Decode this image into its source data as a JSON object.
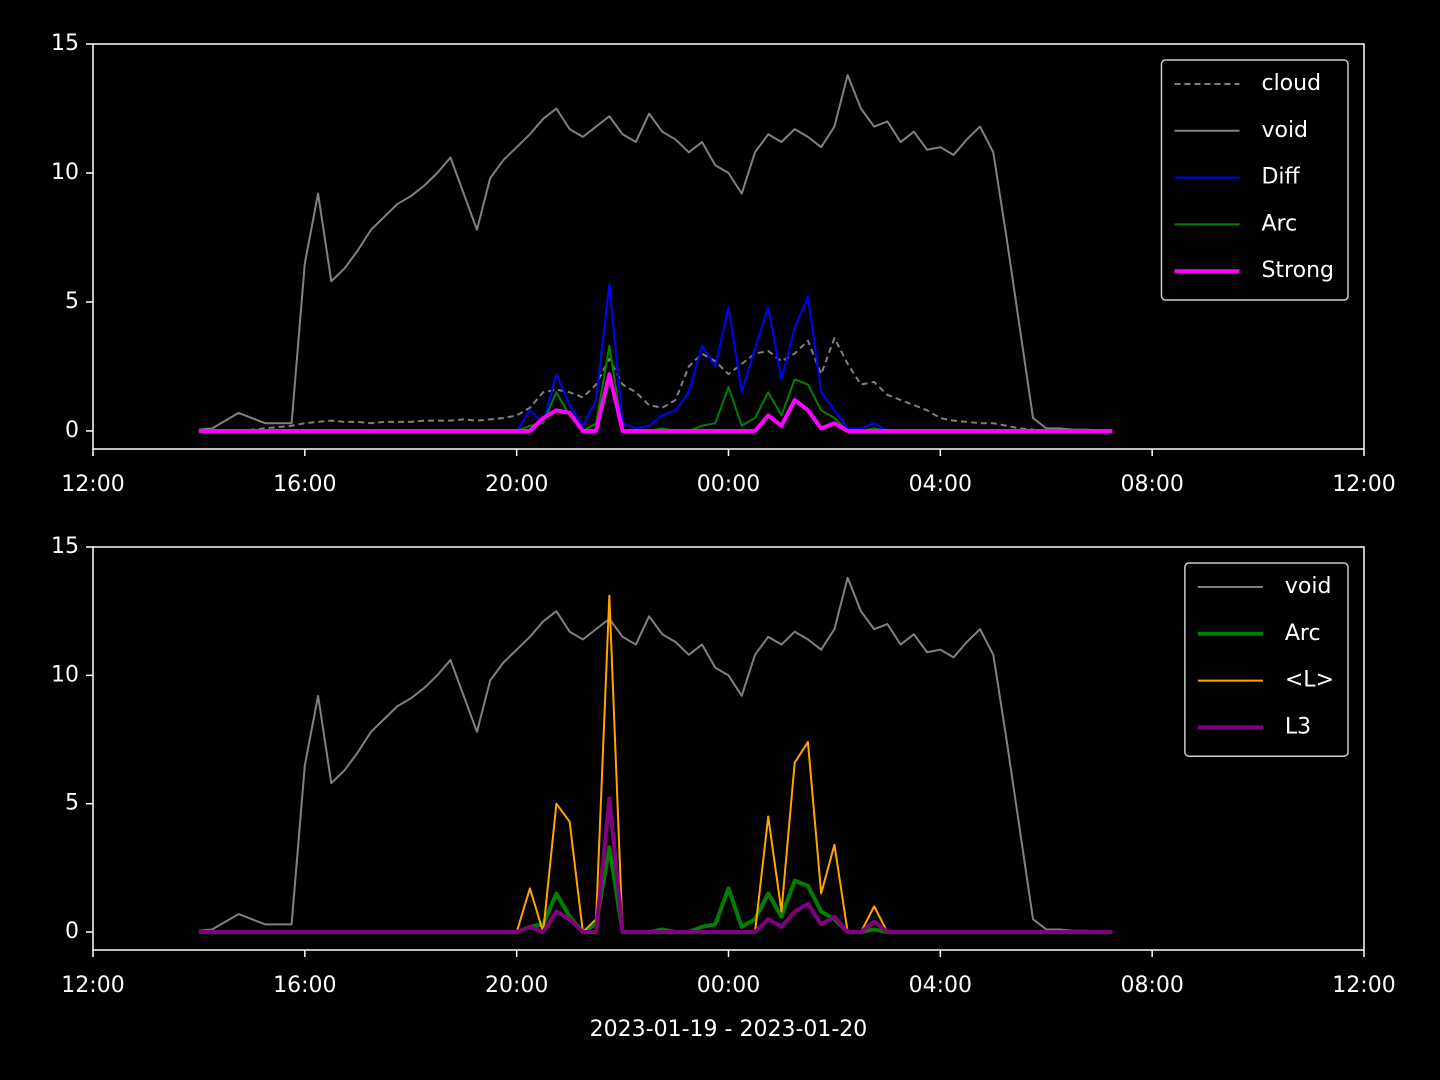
{
  "chart_data": [
    {
      "type": "line",
      "x": [
        "14:00",
        "14:15",
        "14:30",
        "14:45",
        "15:00",
        "15:15",
        "15:30",
        "15:45",
        "16:00",
        "16:15",
        "16:30",
        "16:45",
        "17:00",
        "17:15",
        "17:30",
        "17:45",
        "18:00",
        "18:15",
        "18:30",
        "18:45",
        "19:00",
        "19:15",
        "19:30",
        "19:45",
        "20:00",
        "20:15",
        "20:30",
        "20:45",
        "21:00",
        "21:15",
        "21:30",
        "21:45",
        "22:00",
        "22:15",
        "22:30",
        "22:45",
        "23:00",
        "23:15",
        "23:30",
        "23:45",
        "00:00",
        "00:15",
        "00:30",
        "00:45",
        "01:00",
        "01:15",
        "01:30",
        "01:45",
        "02:00",
        "02:15",
        "02:30",
        "02:45",
        "03:00",
        "03:15",
        "03:30",
        "03:45",
        "04:00",
        "04:15",
        "04:30",
        "04:45",
        "05:00",
        "05:15",
        "05:30",
        "05:45",
        "06:00",
        "06:15",
        "06:30",
        "06:45",
        "07:00",
        "07:15"
      ],
      "xlim": [
        "12:00",
        "12:00"
      ],
      "xticks": [
        "12:00",
        "16:00",
        "20:00",
        "00:00",
        "04:00",
        "08:00",
        "12:00"
      ],
      "ylim": [
        -0.7,
        15
      ],
      "yticks": [
        0,
        5,
        10,
        15
      ],
      "legend": "upper right",
      "series": [
        {
          "name": "cloud",
          "color": "#808080",
          "linestyle": "dashed",
          "linewidth": 1,
          "values": [
            0,
            0,
            0,
            0,
            0.05,
            0.1,
            0.15,
            0.2,
            0.3,
            0.35,
            0.4,
            0.35,
            0.35,
            0.3,
            0.35,
            0.35,
            0.35,
            0.4,
            0.4,
            0.4,
            0.45,
            0.4,
            0.45,
            0.5,
            0.6,
            0.9,
            1.5,
            1.6,
            1.5,
            1.3,
            1.8,
            2.8,
            1.8,
            1.5,
            1.0,
            0.9,
            1.2,
            2.5,
            3.0,
            2.7,
            2.2,
            2.6,
            3.0,
            3.1,
            2.7,
            3.0,
            3.5,
            2.2,
            3.6,
            2.6,
            1.8,
            1.9,
            1.4,
            1.2,
            1.0,
            0.8,
            0.5,
            0.4,
            0.35,
            0.3,
            0.3,
            0.2,
            0.1,
            0.05,
            0,
            0,
            0,
            0,
            0,
            0
          ]
        },
        {
          "name": "void",
          "color": "#808080",
          "linestyle": "solid",
          "linewidth": 1,
          "values": [
            0.05,
            0.1,
            0.4,
            0.7,
            0.5,
            0.3,
            0.3,
            0.3,
            6.5,
            9.2,
            5.8,
            6.3,
            7.0,
            7.8,
            8.3,
            8.8,
            9.1,
            9.5,
            10.0,
            10.6,
            9.2,
            7.8,
            9.8,
            10.5,
            11.0,
            11.5,
            12.1,
            12.5,
            11.7,
            11.4,
            11.8,
            12.2,
            11.5,
            11.2,
            12.3,
            11.6,
            11.3,
            10.8,
            11.2,
            10.3,
            10.0,
            9.2,
            10.8,
            11.5,
            11.2,
            11.7,
            11.4,
            11.0,
            11.8,
            13.8,
            12.5,
            11.8,
            12.0,
            11.2,
            11.6,
            10.9,
            11.0,
            10.7,
            11.3,
            11.8,
            10.8,
            7.5,
            4.0,
            0.5,
            0.1,
            0.1,
            0.05,
            0.05,
            0.02,
            0.02
          ]
        },
        {
          "name": "Diff",
          "color": "#0000ff",
          "linestyle": "solid",
          "linewidth": 1,
          "values": [
            0,
            0,
            0,
            0,
            0,
            0,
            0,
            0,
            0,
            0,
            0,
            0,
            0,
            0,
            0,
            0,
            0,
            0,
            0,
            0,
            0,
            0,
            0,
            0,
            0,
            0.8,
            0.3,
            2.2,
            1.0,
            0.2,
            1.2,
            5.7,
            0.3,
            0.1,
            0.2,
            0.6,
            0.8,
            1.5,
            3.3,
            2.5,
            4.8,
            1.5,
            3.2,
            4.8,
            2.0,
            4.0,
            5.2,
            1.5,
            0.8,
            0.1,
            0.1,
            0.3,
            0,
            0,
            0,
            0,
            0,
            0,
            0,
            0,
            0,
            0,
            0,
            0,
            0,
            0,
            0,
            0,
            0,
            0
          ]
        },
        {
          "name": "Arc",
          "color": "#008000",
          "linestyle": "solid",
          "linewidth": 1,
          "values": [
            0,
            0,
            0,
            0,
            0,
            0,
            0,
            0,
            0,
            0,
            0,
            0,
            0,
            0,
            0,
            0,
            0,
            0,
            0,
            0,
            0,
            0,
            0,
            0,
            0,
            0.2,
            0.3,
            1.5,
            0.6,
            0,
            0.3,
            3.3,
            0,
            0,
            0,
            0.1,
            0,
            0,
            0.2,
            0.3,
            1.7,
            0.2,
            0.5,
            1.5,
            0.6,
            2.0,
            1.8,
            0.8,
            0.5,
            0,
            0,
            0.1,
            0,
            0,
            0,
            0,
            0,
            0,
            0,
            0,
            0,
            0,
            0,
            0,
            0,
            0,
            0,
            0,
            0,
            0
          ]
        },
        {
          "name": "Strong",
          "color": "#ff00ff",
          "linestyle": "solid",
          "linewidth": 2,
          "values": [
            0,
            0,
            0,
            0,
            0,
            0,
            0,
            0,
            0,
            0,
            0,
            0,
            0,
            0,
            0,
            0,
            0,
            0,
            0,
            0,
            0,
            0,
            0,
            0,
            0,
            0,
            0.5,
            0.8,
            0.7,
            0,
            0,
            2.2,
            0,
            0,
            0,
            0,
            0,
            0,
            0,
            0,
            0,
            0,
            0,
            0.6,
            0.2,
            1.2,
            0.8,
            0.1,
            0.3,
            0,
            0,
            0,
            0,
            0,
            0,
            0,
            0,
            0,
            0,
            0,
            0,
            0,
            0,
            0,
            0,
            0,
            0,
            0,
            0,
            0
          ]
        }
      ]
    },
    {
      "type": "line",
      "x": [
        "14:00",
        "14:15",
        "14:30",
        "14:45",
        "15:00",
        "15:15",
        "15:30",
        "15:45",
        "16:00",
        "16:15",
        "16:30",
        "16:45",
        "17:00",
        "17:15",
        "17:30",
        "17:45",
        "18:00",
        "18:15",
        "18:30",
        "18:45",
        "19:00",
        "19:15",
        "19:30",
        "19:45",
        "20:00",
        "20:15",
        "20:30",
        "20:45",
        "21:00",
        "21:15",
        "21:30",
        "21:45",
        "22:00",
        "22:15",
        "22:30",
        "22:45",
        "23:00",
        "23:15",
        "23:30",
        "23:45",
        "00:00",
        "00:15",
        "00:30",
        "00:45",
        "01:00",
        "01:15",
        "01:30",
        "01:45",
        "02:00",
        "02:15",
        "02:30",
        "02:45",
        "03:00",
        "03:15",
        "03:30",
        "03:45",
        "04:00",
        "04:15",
        "04:30",
        "04:45",
        "05:00",
        "05:15",
        "05:30",
        "05:45",
        "06:00",
        "06:15",
        "06:30",
        "06:45",
        "07:00",
        "07:15"
      ],
      "xlim": [
        "12:00",
        "12:00"
      ],
      "xticks": [
        "12:00",
        "16:00",
        "20:00",
        "00:00",
        "04:00",
        "08:00",
        "12:00"
      ],
      "xlabel": "2023-01-19 - 2023-01-20",
      "ylim": [
        -0.7,
        15
      ],
      "yticks": [
        0,
        5,
        10,
        15
      ],
      "legend": "upper right",
      "series": [
        {
          "name": "void",
          "color": "#808080",
          "linestyle": "solid",
          "linewidth": 1,
          "values": [
            0.05,
            0.1,
            0.4,
            0.7,
            0.5,
            0.3,
            0.3,
            0.3,
            6.5,
            9.2,
            5.8,
            6.3,
            7.0,
            7.8,
            8.3,
            8.8,
            9.1,
            9.5,
            10.0,
            10.6,
            9.2,
            7.8,
            9.8,
            10.5,
            11.0,
            11.5,
            12.1,
            12.5,
            11.7,
            11.4,
            11.8,
            12.2,
            11.5,
            11.2,
            12.3,
            11.6,
            11.3,
            10.8,
            11.2,
            10.3,
            10.0,
            9.2,
            10.8,
            11.5,
            11.2,
            11.7,
            11.4,
            11.0,
            11.8,
            13.8,
            12.5,
            11.8,
            12.0,
            11.2,
            11.6,
            10.9,
            11.0,
            10.7,
            11.3,
            11.8,
            10.8,
            7.5,
            4.0,
            0.5,
            0.1,
            0.1,
            0.05,
            0.05,
            0.02,
            0.02
          ]
        },
        {
          "name": "Arc",
          "color": "#008000",
          "linestyle": "solid",
          "linewidth": 2,
          "values": [
            0,
            0,
            0,
            0,
            0,
            0,
            0,
            0,
            0,
            0,
            0,
            0,
            0,
            0,
            0,
            0,
            0,
            0,
            0,
            0,
            0,
            0,
            0,
            0,
            0,
            0.2,
            0.3,
            1.5,
            0.6,
            0,
            0.3,
            3.3,
            0,
            0,
            0,
            0.1,
            0,
            0,
            0.2,
            0.3,
            1.7,
            0.2,
            0.5,
            1.5,
            0.6,
            2.0,
            1.8,
            0.8,
            0.5,
            0,
            0,
            0.1,
            0,
            0,
            0,
            0,
            0,
            0,
            0,
            0,
            0,
            0,
            0,
            0,
            0,
            0,
            0,
            0,
            0,
            0
          ]
        },
        {
          "name": "<L>",
          "color": "#ffa500",
          "linestyle": "solid",
          "linewidth": 1,
          "values": [
            0,
            0,
            0,
            0,
            0,
            0,
            0,
            0,
            0,
            0,
            0,
            0,
            0,
            0,
            0,
            0,
            0,
            0,
            0,
            0,
            0,
            0,
            0,
            0,
            0,
            1.7,
            0,
            5.0,
            4.3,
            0,
            0.5,
            13.1,
            0,
            0,
            0,
            0,
            0,
            0,
            0,
            0,
            0,
            0,
            0,
            4.5,
            0.8,
            6.6,
            7.4,
            1.5,
            3.4,
            0,
            0,
            1.0,
            0,
            0,
            0,
            0,
            0,
            0,
            0,
            0,
            0,
            0,
            0,
            0,
            0,
            0,
            0,
            0,
            0,
            0
          ]
        },
        {
          "name": "L3",
          "color": "#800080",
          "linestyle": "solid",
          "linewidth": 2,
          "values": [
            0,
            0,
            0,
            0,
            0,
            0,
            0,
            0,
            0,
            0,
            0,
            0,
            0,
            0,
            0,
            0,
            0,
            0,
            0,
            0,
            0,
            0,
            0,
            0,
            0,
            0.2,
            0,
            0.8,
            0.5,
            0,
            0,
            5.2,
            0,
            0,
            0,
            0,
            0,
            0,
            0,
            0,
            0,
            0,
            0,
            0.5,
            0.2,
            0.8,
            1.1,
            0.3,
            0.6,
            0,
            0,
            0.4,
            0,
            0,
            0,
            0,
            0,
            0,
            0,
            0,
            0,
            0,
            0,
            0,
            0,
            0,
            0,
            0,
            0,
            0
          ]
        }
      ]
    }
  ]
}
